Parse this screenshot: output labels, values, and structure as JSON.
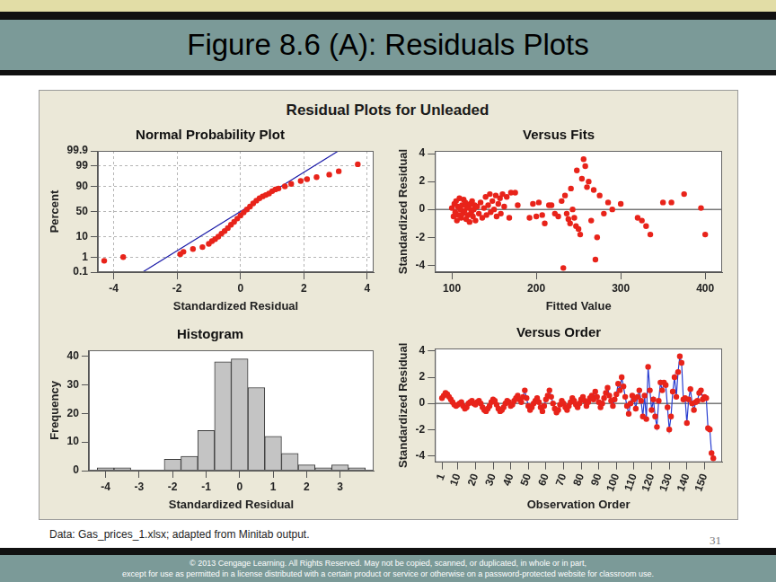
{
  "slide": {
    "title": "Figure 8.6 (A): Residuals Plots",
    "figure_title": "Residual Plots for Unleaded",
    "source": "Data: Gas_prices_1.xlsx; adapted from Minitab output.",
    "page": 31,
    "copyright": [
      "© 2013 Cengage Learning. All Rights Reserved. May not be copied, scanned, or duplicated, in whole or in part,",
      "except for use as permitted in a license distributed with a certain product or service or otherwise on a password-protected website for classroom use."
    ]
  },
  "chart_data": [
    {
      "type": "probability",
      "title": "Normal Probability Plot",
      "xlabel": "Standardized Residual",
      "ylabel": "Percent",
      "xlim": [
        -4.5,
        4.2
      ],
      "xticks": [
        -4,
        -2,
        0,
        2,
        4
      ],
      "ylim": [
        0.1,
        99.9
      ],
      "yticks": [
        0.1,
        1,
        10,
        50,
        90,
        99,
        99.9
      ],
      "grid": true,
      "series": [
        {
          "type": "scatter",
          "color": "#e8231a",
          "marker": "circle",
          "x": [
            -4.3,
            -3.7,
            -1.9,
            -1.8,
            -1.5,
            -1.2,
            -1.0,
            -0.9,
            -0.8,
            -0.7,
            -0.6,
            -0.5,
            -0.4,
            -0.3,
            -0.2,
            -0.1,
            0.0,
            0.1,
            0.2,
            0.3,
            0.4,
            0.5,
            0.6,
            0.7,
            0.8,
            0.9,
            1.0,
            1.1,
            1.2,
            1.4,
            1.6,
            1.9,
            2.1,
            2.4,
            2.8,
            3.1,
            3.7
          ],
          "values": [
            0.6,
            1.0,
            1.5,
            2.0,
            2.8,
            3.5,
            5,
            6.5,
            8,
            10,
            13,
            16,
            20,
            25,
            30,
            36,
            42,
            48,
            54,
            60,
            66,
            71,
            75,
            78,
            80,
            82,
            85,
            87,
            88,
            90,
            92,
            94,
            95,
            96,
            97,
            98,
            99.2
          ]
        },
        {
          "type": "line",
          "color": "#1a1aa8",
          "marker": "none",
          "line_style": "solid",
          "x": [
            -3.09,
            3.09
          ],
          "values": [
            0.1,
            99.9
          ]
        }
      ]
    },
    {
      "type": "scatter",
      "title": "Versus Fits",
      "xlabel": "Fitted Value",
      "ylabel": "Standardized Residual",
      "xlim": [
        80,
        420
      ],
      "xticks": [
        100,
        200,
        300,
        400
      ],
      "ylim": [
        -4.5,
        4.2
      ],
      "yticks": [
        -4,
        -2,
        0,
        2,
        4
      ],
      "grid": false,
      "reference_y": 0,
      "series": [
        {
          "color": "#e8231a",
          "marker": "circle",
          "x": [
            100,
            102,
            103,
            104,
            105,
            106,
            107,
            108,
            109,
            110,
            111,
            112,
            113,
            114,
            115,
            116,
            117,
            118,
            119,
            120,
            121,
            122,
            123,
            124,
            125,
            126,
            127,
            128,
            130,
            132,
            134,
            136,
            138,
            140,
            141,
            143,
            145,
            146,
            148,
            150,
            152,
            153,
            155,
            157,
            158,
            160,
            162,
            165,
            168,
            170,
            175,
            178,
            192,
            196,
            200,
            203,
            207,
            210,
            215,
            218,
            222,
            226,
            230,
            232,
            234,
            236,
            238,
            240,
            241,
            243,
            245,
            247,
            248,
            250,
            252,
            254,
            256,
            258,
            260,
            262,
            265,
            268,
            270,
            272,
            275,
            280,
            285,
            290,
            300,
            320,
            325,
            330,
            335,
            350,
            360,
            375,
            395,
            400
          ],
          "values": [
            0.1,
            -0.5,
            0.4,
            -0.2,
            0.6,
            -0.8,
            0.2,
            -0.4,
            0.8,
            0.0,
            -0.6,
            0.3,
            -0.3,
            0.7,
            -0.1,
            0.5,
            -0.7,
            0.2,
            -0.4,
            0.1,
            -0.9,
            0.4,
            -0.2,
            0.6,
            -0.5,
            0.0,
            0.3,
            -0.8,
            0.2,
            -0.3,
            0.5,
            -0.6,
            0.1,
            0.9,
            -0.4,
            0.3,
            1.1,
            -0.2,
            0.6,
            0.0,
            1.0,
            -0.5,
            0.4,
            0.8,
            -0.3,
            1.1,
            0.2,
            0.9,
            -0.6,
            1.2,
            1.2,
            0.3,
            -0.6,
            0.4,
            -0.5,
            0.5,
            -0.4,
            -1.0,
            0.3,
            0.3,
            -0.3,
            -0.5,
            0.6,
            -4.2,
            1.0,
            -0.3,
            -0.7,
            -1.0,
            1.5,
            0.0,
            -0.6,
            -1.2,
            2.8,
            -1.4,
            -1.8,
            2.2,
            3.6,
            3.1,
            1.6,
            2.0,
            -0.8,
            1.4,
            -3.6,
            -2.0,
            1.0,
            -0.3,
            0.5,
            0.0,
            0.4,
            -0.6,
            -0.8,
            -1.2,
            -1.8,
            0.5,
            0.5,
            1.1,
            0.1,
            -1.8
          ]
        }
      ]
    },
    {
      "type": "histogram",
      "title": "Histogram",
      "xlabel": "Standardized Residual",
      "ylabel": "Frequency",
      "bins": [
        -4.25,
        -3.75,
        -3.25,
        -2.75,
        -2.25,
        -1.75,
        -1.25,
        -0.75,
        -0.25,
        0.25,
        0.75,
        1.25,
        1.75,
        2.25,
        2.75,
        3.25,
        3.75
      ],
      "values": [
        1,
        1,
        0,
        0,
        4,
        5,
        14,
        38,
        39,
        29,
        12,
        6,
        2,
        1,
        2,
        1
      ],
      "color": "#c4c4c4",
      "xlim": [
        -4.5,
        4
      ],
      "xticks": [
        -4,
        -3,
        -2,
        -1,
        0,
        1,
        2,
        3
      ],
      "ylim": [
        0,
        42
      ],
      "yticks": [
        0,
        10,
        20,
        30,
        40
      ],
      "grid": false
    },
    {
      "type": "line",
      "title": "Versus Order",
      "xlabel": "Observation Order",
      "ylabel": "Standardized Residual",
      "xlim": [
        -3,
        160
      ],
      "xticks": [
        1,
        10,
        20,
        30,
        40,
        50,
        60,
        70,
        80,
        90,
        100,
        110,
        120,
        130,
        140,
        150
      ],
      "ylim": [
        -4.5,
        4.2
      ],
      "yticks": [
        -4,
        -2,
        0,
        2,
        4
      ],
      "grid": false,
      "reference_y": 0,
      "color": "#e8231a",
      "series": [
        {
          "color": "#2a3fd0",
          "marker": "circle",
          "line_style": "solid",
          "x": [
            1,
            2,
            3,
            4,
            5,
            6,
            7,
            8,
            9,
            10,
            11,
            12,
            13,
            14,
            15,
            16,
            17,
            18,
            19,
            20,
            21,
            22,
            23,
            24,
            25,
            26,
            27,
            28,
            29,
            30,
            31,
            32,
            33,
            34,
            35,
            36,
            37,
            38,
            39,
            40,
            41,
            42,
            43,
            44,
            45,
            46,
            47,
            48,
            49,
            50,
            51,
            52,
            53,
            54,
            55,
            56,
            57,
            58,
            59,
            60,
            61,
            62,
            63,
            64,
            65,
            66,
            67,
            68,
            69,
            70,
            71,
            72,
            73,
            74,
            75,
            76,
            77,
            78,
            79,
            80,
            81,
            82,
            83,
            84,
            85,
            86,
            87,
            88,
            89,
            90,
            91,
            92,
            93,
            94,
            95,
            96,
            97,
            98,
            99,
            100,
            101,
            102,
            103,
            104,
            105,
            106,
            107,
            108,
            109,
            110,
            111,
            112,
            113,
            114,
            115,
            116,
            117,
            118,
            119,
            120,
            121,
            122,
            123,
            124,
            125,
            126,
            127,
            128,
            129,
            130,
            131,
            132,
            133,
            134,
            135,
            136,
            137,
            138,
            139,
            140,
            141,
            142,
            143,
            144,
            145,
            146,
            147,
            148,
            149,
            150,
            151,
            152,
            153,
            154,
            155
          ],
          "values": [
            0.4,
            0.6,
            0.8,
            0.7,
            0.5,
            0.3,
            0.1,
            -0.1,
            -0.2,
            -0.1,
            0.0,
            0.1,
            -0.2,
            -0.4,
            -0.3,
            0.0,
            0.1,
            0.2,
            0.0,
            -0.1,
            0.1,
            0.2,
            0.0,
            -0.3,
            -0.5,
            -0.6,
            -0.4,
            -0.2,
            0.1,
            0.3,
            0.2,
            -0.1,
            -0.4,
            -0.6,
            -0.5,
            -0.3,
            0.0,
            0.2,
            0.1,
            -0.2,
            -0.1,
            0.2,
            0.4,
            0.6,
            0.3,
            0.1,
            0.5,
            1.0,
            0.4,
            -0.2,
            -0.5,
            -0.3,
            0.0,
            0.2,
            0.4,
            0.1,
            -0.3,
            -0.6,
            -0.2,
            0.3,
            0.6,
            1.0,
            0.5,
            0.0,
            -0.4,
            -0.7,
            -0.5,
            -0.1,
            0.2,
            0.0,
            -0.3,
            -0.5,
            -0.2,
            0.1,
            0.4,
            0.2,
            -0.1,
            -0.3,
            0.0,
            0.3,
            0.5,
            0.2,
            -0.2,
            0.1,
            0.4,
            0.6,
            0.3,
            0.9,
            0.5,
            0.1,
            -0.3,
            0.0,
            0.4,
            0.8,
            1.2,
            0.6,
            0.2,
            -0.2,
            0.3,
            0.7,
            1.5,
            1.0,
            2.0,
            1.3,
            0.5,
            -0.2,
            -0.8,
            0.0,
            0.6,
            0.3,
            -0.4,
            0.5,
            1.0,
            0.2,
            -1.0,
            0.6,
            -1.2,
            2.8,
            1.0,
            -0.5,
            0.3,
            -1.0,
            -1.8,
            0.2,
            1.6,
            1.0,
            1.6,
            1.4,
            -0.3,
            -2.0,
            -1.0,
            0.9,
            2.0,
            0.5,
            2.4,
            3.6,
            3.1,
            0.3,
            0.4,
            -1.5,
            0.3,
            1.1,
            0.0,
            -0.5,
            0.1,
            0.2,
            0.8,
            1.0,
            0.3,
            0.5,
            0.4,
            -1.9,
            -2.0,
            -3.8,
            -4.2
          ]
        }
      ]
    }
  ]
}
